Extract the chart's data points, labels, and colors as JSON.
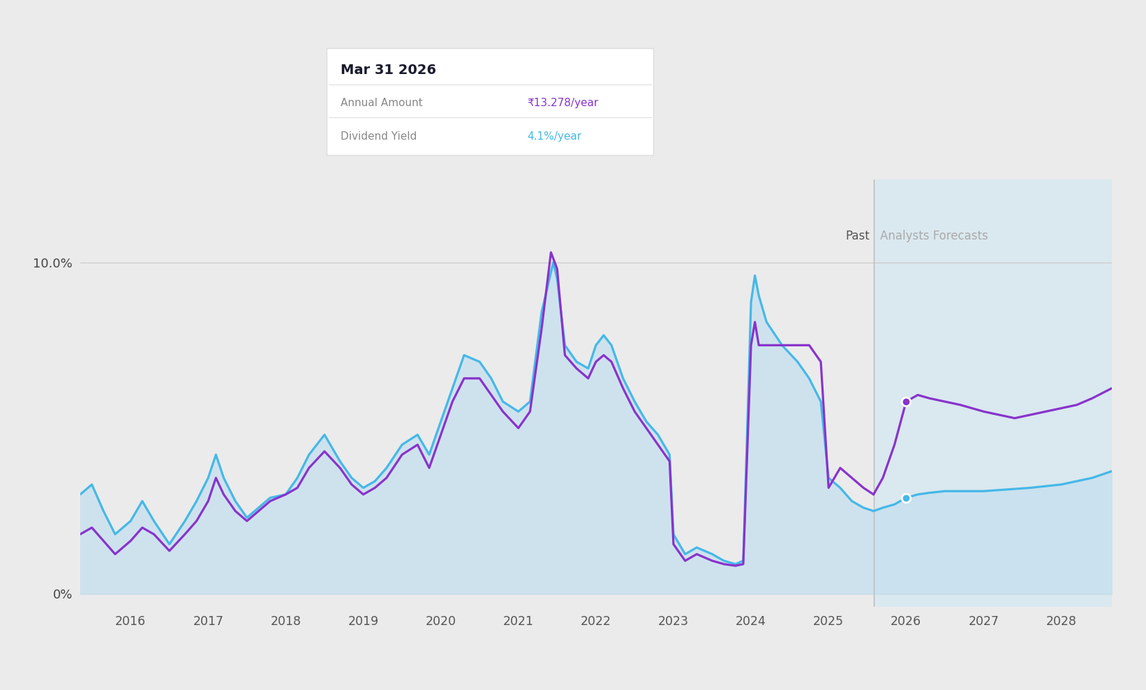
{
  "bg_color": "#ebebeb",
  "plot_bg_color": "#ebebeb",
  "forecast_bg_color": "#d8e8f0",
  "fill_color": "#c5dff0",
  "yield_line_color": "#45b8e8",
  "annual_line_color": "#8833cc",
  "tooltip_date": "Mar 31 2026",
  "tooltip_annual": "₹13.278/year",
  "tooltip_yield": "4.1%/year",
  "past_label": "Past",
  "forecast_label": "Analysts Forecasts",
  "forecast_start_x": 2025.58,
  "xlim": [
    2015.35,
    2028.65
  ],
  "ylim": [
    -0.4,
    12.5
  ],
  "xtick_years": [
    2016,
    2017,
    2018,
    2019,
    2020,
    2021,
    2022,
    2023,
    2024,
    2025,
    2026,
    2027,
    2028
  ],
  "dividend_yield_x": [
    2015.35,
    2015.5,
    2015.65,
    2015.8,
    2016.0,
    2016.15,
    2016.3,
    2016.5,
    2016.7,
    2016.85,
    2017.0,
    2017.1,
    2017.2,
    2017.35,
    2017.5,
    2017.65,
    2017.8,
    2018.0,
    2018.15,
    2018.3,
    2018.5,
    2018.7,
    2018.85,
    2019.0,
    2019.15,
    2019.3,
    2019.5,
    2019.7,
    2019.85,
    2020.0,
    2020.15,
    2020.3,
    2020.5,
    2020.65,
    2020.8,
    2021.0,
    2021.15,
    2021.3,
    2021.45,
    2021.5,
    2021.6,
    2021.75,
    2021.9,
    2022.0,
    2022.1,
    2022.2,
    2022.35,
    2022.5,
    2022.65,
    2022.8,
    2022.95,
    2023.0,
    2023.15,
    2023.3,
    2023.5,
    2023.65,
    2023.8,
    2023.9,
    2024.0,
    2024.05,
    2024.1,
    2024.2,
    2024.4,
    2024.6,
    2024.75,
    2024.9,
    2025.0,
    2025.15,
    2025.3,
    2025.45,
    2025.58
  ],
  "dividend_yield_y": [
    3.0,
    3.3,
    2.5,
    1.8,
    2.2,
    2.8,
    2.2,
    1.5,
    2.2,
    2.8,
    3.5,
    4.2,
    3.5,
    2.8,
    2.3,
    2.6,
    2.9,
    3.0,
    3.5,
    4.2,
    4.8,
    4.0,
    3.5,
    3.2,
    3.4,
    3.8,
    4.5,
    4.8,
    4.2,
    5.2,
    6.2,
    7.2,
    7.0,
    6.5,
    5.8,
    5.5,
    5.8,
    8.5,
    10.0,
    9.5,
    7.5,
    7.0,
    6.8,
    7.5,
    7.8,
    7.5,
    6.5,
    5.8,
    5.2,
    4.8,
    4.2,
    1.8,
    1.2,
    1.4,
    1.2,
    1.0,
    0.9,
    1.0,
    8.8,
    9.6,
    9.0,
    8.2,
    7.5,
    7.0,
    6.5,
    5.8,
    3.5,
    3.2,
    2.8,
    2.6,
    2.5
  ],
  "annual_amount_past_x": [
    2015.35,
    2015.5,
    2015.65,
    2015.8,
    2016.0,
    2016.15,
    2016.3,
    2016.5,
    2016.7,
    2016.85,
    2017.0,
    2017.1,
    2017.2,
    2017.35,
    2017.5,
    2017.65,
    2017.8,
    2018.0,
    2018.15,
    2018.3,
    2018.5,
    2018.7,
    2018.85,
    2019.0,
    2019.15,
    2019.3,
    2019.5,
    2019.7,
    2019.85,
    2020.0,
    2020.15,
    2020.3,
    2020.5,
    2020.65,
    2020.8,
    2021.0,
    2021.15,
    2021.3,
    2021.42,
    2021.5,
    2021.6,
    2021.75,
    2021.9,
    2022.0,
    2022.1,
    2022.2,
    2022.35,
    2022.5,
    2022.65,
    2022.8,
    2022.95,
    2023.0,
    2023.15,
    2023.3,
    2023.5,
    2023.65,
    2023.8,
    2023.9,
    2024.0,
    2024.05,
    2024.1,
    2024.2,
    2024.4,
    2024.6,
    2024.75,
    2024.9,
    2025.0,
    2025.15,
    2025.3,
    2025.45,
    2025.58
  ],
  "annual_amount_past_y": [
    1.8,
    2.0,
    1.6,
    1.2,
    1.6,
    2.0,
    1.8,
    1.3,
    1.8,
    2.2,
    2.8,
    3.5,
    3.0,
    2.5,
    2.2,
    2.5,
    2.8,
    3.0,
    3.2,
    3.8,
    4.3,
    3.8,
    3.3,
    3.0,
    3.2,
    3.5,
    4.2,
    4.5,
    3.8,
    4.8,
    5.8,
    6.5,
    6.5,
    6.0,
    5.5,
    5.0,
    5.5,
    8.0,
    10.3,
    9.8,
    7.2,
    6.8,
    6.5,
    7.0,
    7.2,
    7.0,
    6.2,
    5.5,
    5.0,
    4.5,
    4.0,
    1.5,
    1.0,
    1.2,
    1.0,
    0.9,
    0.85,
    0.9,
    7.5,
    8.2,
    7.5,
    7.5,
    7.5,
    7.5,
    7.5,
    7.0,
    3.2,
    3.8,
    3.5,
    3.2,
    3.0
  ],
  "annual_amount_forecast_x": [
    2025.58,
    2025.7,
    2025.85,
    2026.0,
    2026.15,
    2026.3,
    2026.5,
    2026.7,
    2026.85,
    2027.0,
    2027.2,
    2027.4,
    2027.6,
    2027.8,
    2028.0,
    2028.2,
    2028.4,
    2028.65
  ],
  "annual_amount_forecast_y": [
    3.0,
    3.5,
    4.5,
    5.8,
    6.0,
    5.9,
    5.8,
    5.7,
    5.6,
    5.5,
    5.4,
    5.3,
    5.4,
    5.5,
    5.6,
    5.7,
    5.9,
    6.2
  ],
  "forecast_yield_x": [
    2025.58,
    2025.7,
    2025.85,
    2026.0,
    2026.15,
    2026.3,
    2026.5,
    2026.7,
    2027.0,
    2027.3,
    2027.6,
    2028.0,
    2028.4,
    2028.65
  ],
  "forecast_yield_y": [
    2.5,
    2.6,
    2.7,
    2.9,
    3.0,
    3.05,
    3.1,
    3.1,
    3.1,
    3.15,
    3.2,
    3.3,
    3.5,
    3.7
  ],
  "marker_yield_x": 2026.0,
  "marker_yield_y": 2.9,
  "marker_annual_x": 2026.0,
  "marker_annual_y": 5.8
}
